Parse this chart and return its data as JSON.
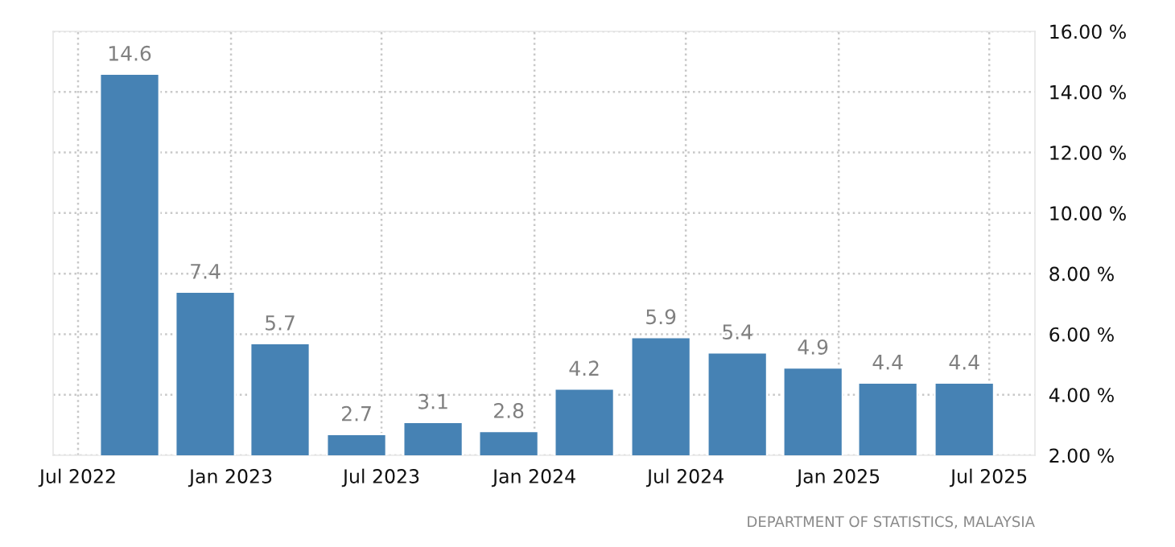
{
  "chart_data": {
    "type": "bar",
    "x": [
      "2022-09-01",
      "2022-12-01",
      "2023-03-01",
      "2023-06-01",
      "2023-09-01",
      "2023-12-01",
      "2024-03-01",
      "2024-06-01",
      "2024-09-01",
      "2024-12-01",
      "2025-03-01",
      "2025-06-01"
    ],
    "series": [
      {
        "color": "#4682b4",
        "values": [
          14.6,
          7.4,
          5.7,
          2.7,
          3.1,
          2.8,
          4.2,
          5.9,
          5.4,
          4.9,
          4.4,
          4.4
        ]
      }
    ],
    "data_labels": true,
    "xlim": [
      "2022-06-01",
      "2025-08-25"
    ],
    "xticks": [
      {
        "value": "2022-07-01",
        "label": "Jul 2022"
      },
      {
        "value": "2023-01-01",
        "label": "Jan 2023"
      },
      {
        "value": "2023-07-01",
        "label": "Jul 2023"
      },
      {
        "value": "2024-01-01",
        "label": "Jan 2024"
      },
      {
        "value": "2024-07-01",
        "label": "Jul 2024"
      },
      {
        "value": "2025-01-01",
        "label": "Jan 2025"
      },
      {
        "value": "2025-07-01",
        "label": "Jul 2025"
      }
    ],
    "ylim": [
      2,
      16
    ],
    "yticks": [
      {
        "value": 2,
        "label": "2.00 %"
      },
      {
        "value": 4,
        "label": "4.00 %"
      },
      {
        "value": 6,
        "label": "6.00 %"
      },
      {
        "value": 8,
        "label": "8.00 %"
      },
      {
        "value": 10,
        "label": "10.00 %"
      },
      {
        "value": 12,
        "label": "12.00 %"
      },
      {
        "value": 14,
        "label": "14.00 %"
      },
      {
        "value": 16,
        "label": "16.00 %"
      }
    ],
    "grid": true,
    "annotations": [
      "DEPARTMENT OF STATISTICS, MALAYSIA"
    ]
  }
}
